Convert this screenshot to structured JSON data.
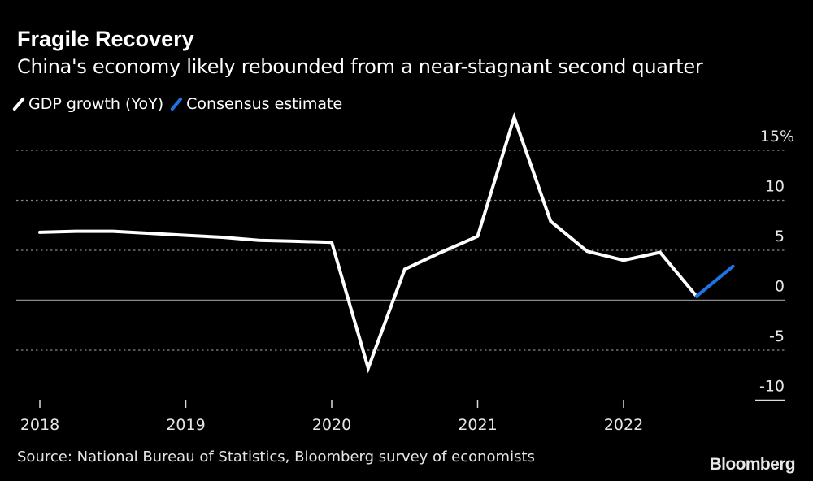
{
  "chart_data": {
    "type": "line",
    "title": "Fragile Recovery",
    "subtitle": "China's economy likely rebounded from a near-stagnant second quarter",
    "source": "Source: National Bureau of Statistics, Bloomberg survey of economists",
    "logo": "Bloomberg",
    "x_ticks": [
      {
        "label": "2018",
        "value": 2018
      },
      {
        "label": "2019",
        "value": 2019
      },
      {
        "label": "2020",
        "value": 2020
      },
      {
        "label": "2021",
        "value": 2021
      },
      {
        "label": "2022",
        "value": 2022
      }
    ],
    "y_ticks": [
      {
        "label": "15%",
        "value": 15
      },
      {
        "label": "10",
        "value": 10
      },
      {
        "label": "5",
        "value": 5
      },
      {
        "label": "0",
        "value": 0
      },
      {
        "label": "-5",
        "value": -5
      },
      {
        "label": "-10",
        "value": -10
      }
    ],
    "xlim": [
      2017.95,
      2023.2
    ],
    "ylim": [
      -10,
      18.5
    ],
    "grid": true,
    "legend_position": "top-left",
    "series": [
      {
        "name": "GDP growth (YoY)",
        "color": "#ffffff",
        "x": [
          2018.0,
          2018.25,
          2018.5,
          2018.75,
          2019.0,
          2019.25,
          2019.5,
          2019.75,
          2020.0,
          2020.25,
          2020.5,
          2020.75,
          2021.0,
          2021.25,
          2021.5,
          2021.75,
          2022.0,
          2022.25,
          2022.5
        ],
        "values": [
          6.8,
          6.9,
          6.9,
          6.7,
          6.5,
          6.3,
          6.0,
          5.9,
          5.8,
          -6.8,
          3.1,
          4.8,
          6.4,
          18.3,
          7.9,
          4.9,
          4.0,
          4.8,
          0.4
        ]
      },
      {
        "name": "Consensus estimate",
        "color": "#1f74e3",
        "x": [
          2022.5,
          2022.75
        ],
        "values": [
          0.4,
          3.4
        ]
      }
    ]
  }
}
